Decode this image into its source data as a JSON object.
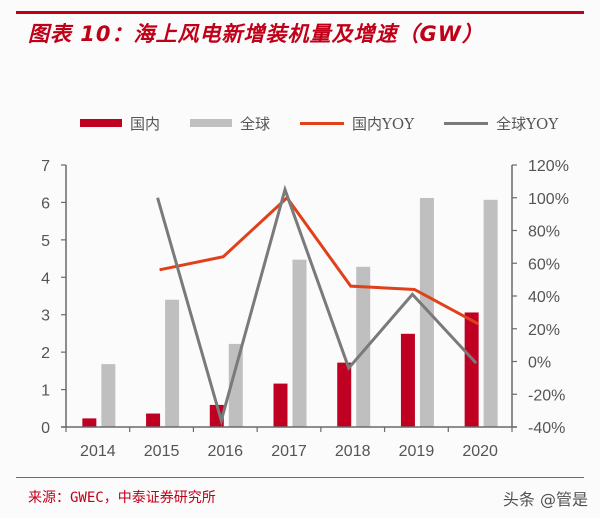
{
  "header": {
    "title": "图表 10：海上风电新增装机量及增速（GW）"
  },
  "legend": [
    {
      "label": "国内",
      "kind": "bar",
      "color": "#c00023"
    },
    {
      "label": "全球",
      "kind": "bar",
      "color": "#bfbfbf"
    },
    {
      "label": "国内YOY",
      "kind": "line",
      "color": "#e0401a"
    },
    {
      "label": "全球YOY",
      "kind": "line",
      "color": "#7a7a7a"
    }
  ],
  "footer": {
    "source": "来源：GWEC，中泰证券研究所",
    "watermark": "头条 @管是"
  },
  "chart_data": {
    "type": "bar",
    "title": "海上风电新增装机量及增速（GW）",
    "categories": [
      "2014",
      "2015",
      "2016",
      "2017",
      "2018",
      "2019",
      "2020"
    ],
    "xlabel": "",
    "ylabel": "GW",
    "ylim": [
      0,
      7
    ],
    "yticks": [
      "0",
      "1",
      "2",
      "3",
      "4",
      "5",
      "6",
      "7"
    ],
    "y2lim": [
      -40,
      120
    ],
    "y2ticks": [
      "-40%",
      "-20%",
      "0%",
      "20%",
      "40%",
      "60%",
      "80%",
      "100%",
      "120%"
    ],
    "grid": false,
    "legend_position": "top",
    "series": [
      {
        "name": "国内",
        "type": "bar",
        "axis": "left",
        "color": "#c00023",
        "values": [
          0.23,
          0.36,
          0.59,
          1.16,
          1.72,
          2.49,
          3.06
        ]
      },
      {
        "name": "全球",
        "type": "bar",
        "axis": "left",
        "color": "#bfbfbf",
        "values": [
          1.68,
          3.4,
          2.22,
          4.47,
          4.28,
          6.12,
          6.07
        ]
      },
      {
        "name": "国内YOY",
        "type": "line",
        "axis": "right",
        "color": "#e0401a",
        "unit": "%",
        "values": [
          null,
          56,
          64,
          100,
          46,
          44,
          23
        ]
      },
      {
        "name": "全球YOY",
        "type": "line",
        "axis": "right",
        "color": "#7a7a7a",
        "unit": "%",
        "values": [
          null,
          100,
          -36,
          105,
          -4,
          41,
          -1
        ]
      }
    ]
  }
}
